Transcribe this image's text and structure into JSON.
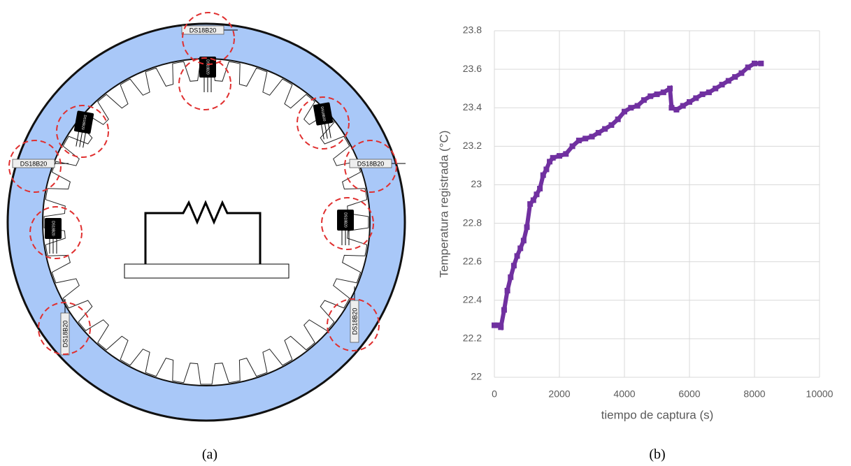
{
  "diagram": {
    "ring_labels": [
      "DS18B20",
      "DS18B20",
      "DS18B20",
      "DS18B20",
      "DS18B20"
    ],
    "chip_labels": [
      "DS18B20",
      "DS18B20",
      "DS18B20",
      "DS18B20",
      "DS18B20"
    ],
    "caption": "(a)"
  },
  "chart_data": {
    "type": "scatter",
    "caption": "(b)",
    "x_label": "tiempo de captura (s)",
    "y_label": "Temperatura registrada (°C)",
    "xlim": [
      0,
      10000
    ],
    "xticks": [
      0,
      2000,
      4000,
      6000,
      8000,
      10000
    ],
    "ylim": [
      22,
      23.8
    ],
    "yticks": [
      22,
      22.2,
      22.4,
      22.6,
      22.8,
      23,
      23.2,
      23.4,
      23.6,
      23.8
    ],
    "grid": true,
    "color": "#7030a0",
    "x": [
      0,
      100,
      200,
      300,
      400,
      500,
      600,
      700,
      800,
      900,
      1000,
      1100,
      1200,
      1300,
      1400,
      1500,
      1600,
      1700,
      1800,
      2000,
      2200,
      2400,
      2600,
      2800,
      3000,
      3200,
      3400,
      3600,
      3800,
      4000,
      4200,
      4400,
      4600,
      4800,
      5000,
      5200,
      5400,
      5450,
      5600,
      5800,
      6000,
      6200,
      6400,
      6600,
      6800,
      7000,
      7200,
      7400,
      7600,
      7800,
      8000,
      8200
    ],
    "values": [
      22.27,
      22.27,
      22.26,
      22.35,
      22.45,
      22.52,
      22.58,
      22.63,
      22.67,
      22.71,
      22.78,
      22.9,
      22.92,
      22.95,
      22.98,
      23.05,
      23.08,
      23.12,
      23.14,
      23.15,
      23.16,
      23.2,
      23.23,
      23.24,
      23.25,
      23.27,
      23.29,
      23.31,
      23.34,
      23.38,
      23.4,
      23.41,
      23.44,
      23.46,
      23.47,
      23.48,
      23.5,
      23.4,
      23.39,
      23.41,
      23.43,
      23.45,
      23.47,
      23.48,
      23.5,
      23.52,
      23.54,
      23.56,
      23.58,
      23.61,
      23.63,
      23.63
    ]
  }
}
